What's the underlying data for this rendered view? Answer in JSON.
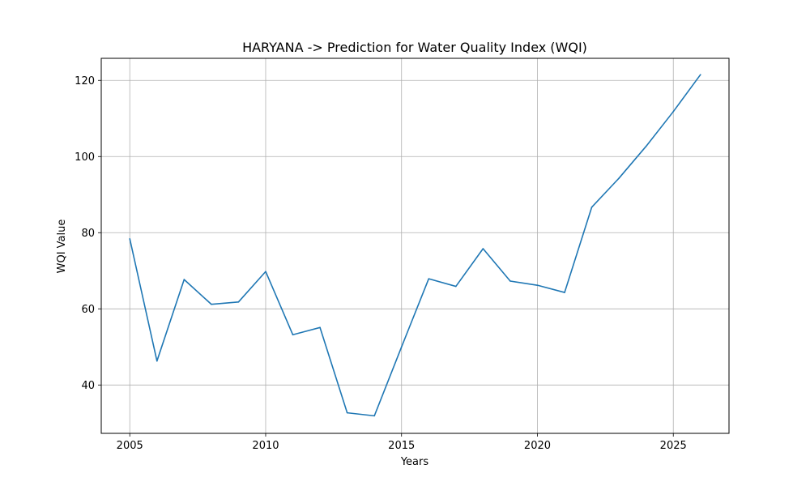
{
  "chart_data": {
    "type": "line",
    "title": "HARYANA -> Prediction for Water Quality Index (WQI)",
    "xlabel": "Years",
    "ylabel": "WQI Value",
    "xlim": [
      2003.95,
      2027.05
    ],
    "ylim": [
      27.3,
      125.8
    ],
    "xticks": [
      2005,
      2010,
      2015,
      2020,
      2025
    ],
    "yticks": [
      40,
      60,
      80,
      100,
      120
    ],
    "grid": true,
    "color": "#1f77b4",
    "series": [
      {
        "x": [
          2005,
          2006,
          2007,
          2008,
          2009,
          2010,
          2011,
          2012,
          2013,
          2014,
          2015,
          2016,
          2017,
          2018,
          2019,
          2020,
          2021,
          2022,
          2023,
          2024,
          2025,
          2026
        ],
        "values": [
          78.4,
          46.3,
          67.7,
          61.2,
          61.8,
          69.8,
          53.2,
          55.1,
          32.7,
          31.9,
          50.0,
          67.9,
          65.9,
          75.8,
          67.3,
          66.2,
          64.3,
          86.7,
          94.3,
          102.7,
          111.8,
          121.5
        ]
      }
    ]
  }
}
